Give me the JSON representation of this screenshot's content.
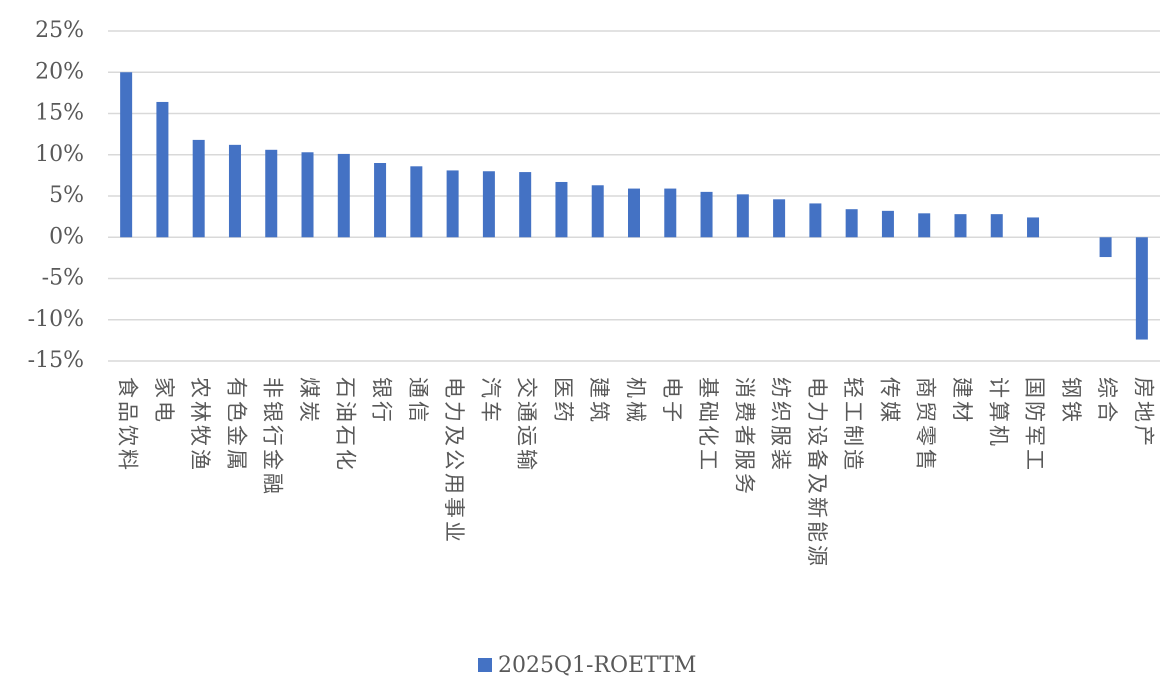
{
  "chart_data": {
    "type": "bar",
    "categories": [
      "食品饮料",
      "家电",
      "农林牧渔",
      "有色金属",
      "非银行金融",
      "煤炭",
      "石油石化",
      "银行",
      "通信",
      "电力及公用事业",
      "汽车",
      "交通运输",
      "医药",
      "建筑",
      "机械",
      "电子",
      "基础化工",
      "消费者服务",
      "纺织服装",
      "电力设备及新能源",
      "轻工制造",
      "传媒",
      "商贸零售",
      "建材",
      "计算机",
      "国防军工",
      "钢铁",
      "综合",
      "房地产"
    ],
    "series": [
      {
        "name": "2025Q1-ROETTM",
        "color": "#4472c4",
        "values": [
          20.0,
          16.4,
          11.8,
          11.2,
          10.6,
          10.3,
          10.1,
          9.0,
          8.6,
          8.1,
          8.0,
          7.9,
          6.7,
          6.3,
          5.9,
          5.9,
          5.5,
          5.2,
          4.6,
          4.1,
          3.4,
          3.2,
          2.9,
          2.8,
          2.8,
          2.4,
          0.0,
          -2.4,
          -12.4
        ]
      }
    ],
    "ylim": [
      -15,
      25
    ],
    "yticks": [
      {
        "value": -15,
        "label": "-15%"
      },
      {
        "value": -10,
        "label": "-10%"
      },
      {
        "value": -5,
        "label": "-5%"
      },
      {
        "value": 0,
        "label": "0%"
      },
      {
        "value": 5,
        "label": "5%"
      },
      {
        "value": 10,
        "label": "10%"
      },
      {
        "value": 15,
        "label": "15%"
      },
      {
        "value": 20,
        "label": "20%"
      },
      {
        "value": 25,
        "label": "25%"
      }
    ],
    "grid": true,
    "legend": "bottom"
  }
}
